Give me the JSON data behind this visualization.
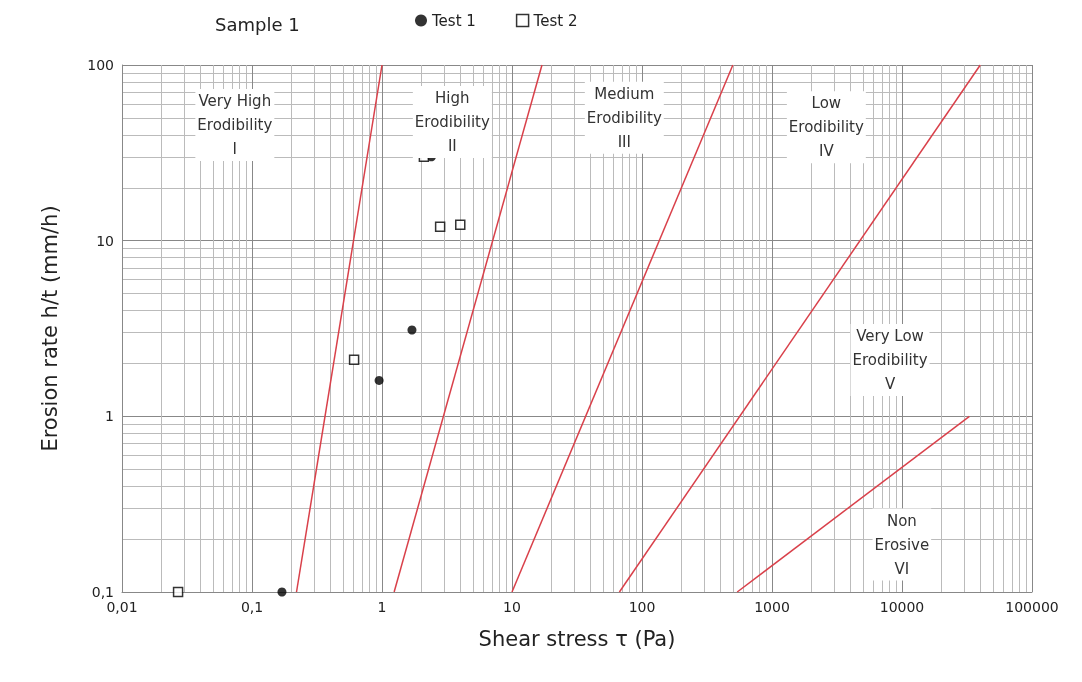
{
  "chart_data": {
    "type": "scatter",
    "title": "Sample 1",
    "xlabel": "Shear stress τ (Pa)",
    "ylabel": "Erosion rate h/t (mm/h)",
    "log": "xy",
    "grid": true,
    "legend": "top",
    "xlim": [
      0.01,
      100000
    ],
    "ylim": [
      0.1,
      100
    ],
    "xticks": [
      {
        "value": 0.01,
        "label": "0,01"
      },
      {
        "value": 0.1,
        "label": "0,1"
      },
      1,
      10,
      100,
      1000,
      10000,
      100000
    ],
    "yticks": [
      {
        "value": 0.1,
        "label": "0,1"
      },
      1,
      10,
      100
    ],
    "series": [
      {
        "name": "Test 1",
        "marker": "circle",
        "color": "#000000",
        "x": [
          0.17,
          0.95,
          1.7,
          2.4
        ],
        "values": [
          0.1,
          1.6,
          3.1,
          30
        ]
      },
      {
        "name": "Test 2",
        "marker": "square",
        "color": "#000000",
        "x": [
          0.027,
          0.61,
          2.1,
          2.8,
          4.0
        ],
        "values": [
          0.1,
          2.1,
          30,
          12,
          12.3
        ]
      },
      {
        "type": "line",
        "marker": "none",
        "color": "#d9404a",
        "x": [
          0.22,
          1
        ],
        "values": [
          0.1,
          100
        ]
      },
      {
        "type": "line",
        "marker": "none",
        "color": "#d9404a",
        "x": [
          1.24,
          17
        ],
        "values": [
          0.1,
          100
        ]
      },
      {
        "type": "line",
        "marker": "none",
        "color": "#d9404a",
        "x": [
          10,
          500
        ],
        "values": [
          0.1,
          100
        ]
      },
      {
        "type": "line",
        "marker": "none",
        "color": "#d9404a",
        "x": [
          67,
          40000
        ],
        "values": [
          0.1,
          100
        ]
      },
      {
        "type": "line",
        "marker": "none",
        "color": "#d9404a",
        "x": [
          540,
          33000
        ],
        "values": [
          0.1,
          1
        ]
      }
    ],
    "annotations": [
      "Very High\nErodibility\nI",
      "High\nErodibility\nII",
      "Medium\nErodibility\nIII",
      "Low\nErodibility\nIV",
      "Very Low\nErodibility\nV",
      "Non\nErosive\nVI"
    ]
  }
}
